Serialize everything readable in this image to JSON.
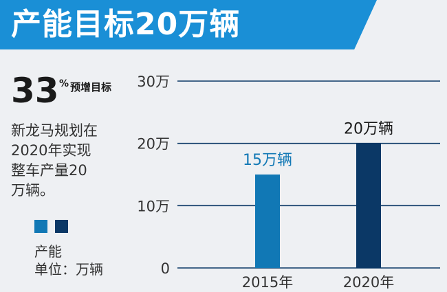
{
  "header": {
    "title": "产能目标20万辆"
  },
  "stat": {
    "value": "33",
    "symbol": "%",
    "label": "预增目标"
  },
  "description": [
    "新龙马规划在",
    "2020年实现",
    "整车产量20",
    "万辆。"
  ],
  "legend": {
    "name": "产能",
    "unit": "单位：万辆"
  },
  "colors": {
    "banner": "#1a8fd6",
    "bar_2015": "#1178b5",
    "bar_2020": "#0b3866",
    "axis": "#0b3866"
  },
  "chart_data": {
    "type": "bar",
    "categories": [
      "2015年",
      "2020年"
    ],
    "values": [
      15,
      20
    ],
    "data_labels": [
      "15万辆",
      "20万辆"
    ],
    "yticks": [
      0,
      10,
      20,
      30
    ],
    "ytick_labels": [
      "0",
      "10万",
      "20万",
      "30万"
    ],
    "ylim": [
      0,
      30
    ],
    "grid": true
  }
}
